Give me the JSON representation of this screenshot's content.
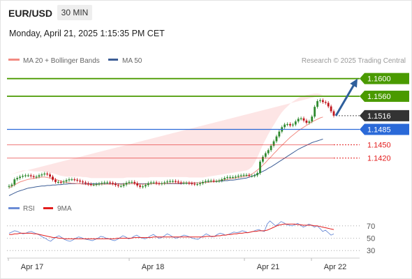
{
  "header": {
    "pair": "EUR/USD",
    "timeframe": "30 MIN",
    "datetime": "Monday, April 21, 2025 1:15:35 PM CET"
  },
  "legend": {
    "ma20": {
      "label": "MA 20 + Bollinger Bands",
      "color": "#f28b82"
    },
    "ma50": {
      "label": "MA 50",
      "color": "#3d5e96"
    },
    "source": "Research © 2025 Trading Central"
  },
  "rsi_legend": {
    "rsi": {
      "label": "RSI",
      "color": "#6b8cd6"
    },
    "ma9": {
      "label": "9MA",
      "color": "#e31d1d"
    }
  },
  "colors": {
    "green": "#4a9a00",
    "blue": "#2a69d8",
    "red": "#e31d1d",
    "candle_up": "#2f8a2f",
    "candle_down": "#c0141b",
    "band_fill": "#fde2e2",
    "arrow": "#2f5f9c",
    "current": "#333333"
  },
  "chart_data": {
    "type": "candlestick",
    "x_ticks": [
      "Apr 17",
      "Apr 18",
      "Apr 21",
      "Apr 22"
    ],
    "y_range": [
      1.132,
      1.162
    ],
    "levels": [
      {
        "label": "1.1600",
        "value": 1.16,
        "kind": "resistance",
        "color": "#4a9a00",
        "badge": true
      },
      {
        "label": "1.1560",
        "value": 1.156,
        "kind": "resistance",
        "color": "#4a9a00",
        "badge": true
      },
      {
        "label": "1.1516",
        "value": 1.1516,
        "kind": "current",
        "color": "#333333",
        "badge": true
      },
      {
        "label": "1.1485",
        "value": 1.1485,
        "kind": "pivot",
        "color": "#2a69d8",
        "badge": true
      },
      {
        "label": "1.1450",
        "value": 1.145,
        "kind": "support",
        "color": "#e31d1d",
        "badge": false
      },
      {
        "label": "1.1420",
        "value": 1.142,
        "kind": "support",
        "color": "#e31d1d",
        "badge": false
      }
    ],
    "closes": [
      1.1357,
      1.136,
      1.1372,
      1.1375,
      1.1378,
      1.138,
      1.1381,
      1.1381,
      1.1379,
      1.1377,
      1.1378,
      1.1381,
      1.1383,
      1.1385,
      1.1383,
      1.1378,
      1.1371,
      1.1366,
      1.1366,
      1.1365,
      1.1367,
      1.137,
      1.1372,
      1.1372,
      1.1371,
      1.1369,
      1.1367,
      1.1365,
      1.1363,
      1.1361,
      1.136,
      1.136,
      1.1361,
      1.1362,
      1.1364,
      1.1365,
      1.1365,
      1.1364,
      1.1362,
      1.1359,
      1.1357,
      1.1357,
      1.136,
      1.1364,
      1.1366,
      1.1366,
      1.1363,
      1.1358,
      1.1355,
      1.1356,
      1.1359,
      1.1363,
      1.1365,
      1.1365,
      1.1363,
      1.1362,
      1.1363,
      1.1365,
      1.1367,
      1.1368,
      1.1368,
      1.1367,
      1.1365,
      1.1364,
      1.1364,
      1.1364,
      1.1363,
      1.1362,
      1.1361,
      1.1361,
      1.1363,
      1.1366,
      1.1368,
      1.1369,
      1.1369,
      1.1368,
      1.1368,
      1.1369,
      1.1372,
      1.1375,
      1.1377,
      1.1377,
      1.1377,
      1.1378,
      1.138,
      1.1381,
      1.1382,
      1.1382,
      1.138,
      1.138,
      1.1381,
      1.1386,
      1.1412,
      1.1423,
      1.1431,
      1.1438,
      1.1448,
      1.1458,
      1.1469,
      1.148,
      1.149,
      1.1496,
      1.1497,
      1.1494,
      1.1496,
      1.1503,
      1.1509,
      1.151,
      1.1505,
      1.15,
      1.1503,
      1.1514,
      1.1536,
      1.1549,
      1.1551,
      1.1547,
      1.1545,
      1.1537,
      1.1526,
      1.1516
    ],
    "ma20": [
      1.1352,
      1.1356,
      1.1359,
      1.1363,
      1.1366,
      1.1368,
      1.137,
      1.1372,
      1.1373,
      1.1374,
      1.1375,
      1.1376,
      1.1377,
      1.1377,
      1.1376,
      1.1375,
      1.1374,
      1.1372,
      1.137,
      1.1368,
      1.1366,
      1.1365,
      1.1364,
      1.1363,
      1.1363,
      1.1362,
      1.1362,
      1.1361,
      1.1361,
      1.136,
      1.136,
      1.136,
      1.136,
      1.1361,
      1.1361,
      1.1361,
      1.1361,
      1.1361,
      1.1361,
      1.1361,
      1.1361,
      1.1361,
      1.1361,
      1.1362,
      1.1362,
      1.1362,
      1.1362,
      1.1361,
      1.1361,
      1.1361,
      1.1361,
      1.1361,
      1.1362,
      1.1362,
      1.1362,
      1.1362,
      1.1362,
      1.1362,
      1.1363,
      1.1363,
      1.1363,
      1.1363,
      1.1363,
      1.1364,
      1.1364,
      1.1364,
      1.1364,
      1.1364,
      1.1364,
      1.1364,
      1.1364,
      1.1364,
      1.1365,
      1.1365,
      1.1366,
      1.1367,
      1.1368,
      1.1369,
      1.137,
      1.1371,
      1.1372,
      1.1373,
      1.1374,
      1.1375,
      1.1376,
      1.1377,
      1.1378,
      1.1379,
      1.1381,
      1.1384,
      1.1388,
      1.1393,
      1.1398,
      1.1404,
      1.141,
      1.1417,
      1.1423,
      1.143,
      1.1436,
      1.1443,
      1.1449,
      1.1455,
      1.1461,
      1.1467,
      1.1472,
      1.1477,
      1.1482,
      1.1486,
      1.149,
      1.1494,
      1.1498,
      1.1502,
      1.1505,
      1.1508,
      1.1511,
      1.1513
    ],
    "ma50": [
      1.1335,
      1.1338,
      1.1341,
      1.1344,
      1.1346,
      1.1348,
      1.135,
      1.1352,
      1.1353,
      1.1354,
      1.1355,
      1.1356,
      1.1357,
      1.1357,
      1.1358,
      1.1358,
      1.1359,
      1.1359,
      1.136,
      1.136,
      1.1361,
      1.1361,
      1.1362,
      1.1362,
      1.1362,
      1.1362,
      1.1362,
      1.1362,
      1.1362,
      1.1362,
      1.1362,
      1.1362,
      1.1362,
      1.1362,
      1.1362,
      1.1362,
      1.1362,
      1.1362,
      1.1362,
      1.1362,
      1.1362,
      1.1362,
      1.1362,
      1.1362,
      1.1362,
      1.1362,
      1.1362,
      1.1362,
      1.1362,
      1.1362,
      1.1362,
      1.1362,
      1.1362,
      1.1362,
      1.1362,
      1.1362,
      1.1362,
      1.1362,
      1.1362,
      1.1362,
      1.1362,
      1.1362,
      1.1362,
      1.1362,
      1.1363,
      1.1363,
      1.1363,
      1.1363,
      1.1364,
      1.1364,
      1.1364,
      1.1365,
      1.1365,
      1.1366,
      1.1366,
      1.1367,
      1.1367,
      1.1368,
      1.1368,
      1.1369,
      1.1369,
      1.137,
      1.137,
      1.1371,
      1.1372,
      1.1373,
      1.1374,
      1.1375,
      1.1377,
      1.1379,
      1.1381,
      1.1384,
      1.1387,
      1.139,
      1.1393,
      1.1397,
      1.14,
      1.1404,
      1.1408,
      1.1412,
      1.1416,
      1.142,
      1.1424,
      1.1428,
      1.1432,
      1.1436,
      1.144,
      1.1443,
      1.1446,
      1.1449,
      1.1452,
      1.1455,
      1.1457,
      1.1459,
      1.1461,
      1.1463
    ],
    "bb_upper": [
      1.1382,
      1.1384,
      1.1386,
      1.1388,
      1.139,
      1.1392,
      1.1392,
      1.1392,
      1.1391,
      1.139,
      1.139,
      1.139,
      1.139,
      1.1389,
      1.1388,
      1.1387,
      1.1386,
      1.1384,
      1.1382,
      1.138,
      1.1379,
      1.1378,
      1.1378,
      1.1378,
      1.1378,
      1.1378,
      1.1378,
      1.1377,
      1.1377,
      1.1376,
      1.1375,
      1.1375,
      1.1375,
      1.1375,
      1.1375,
      1.1375,
      1.1375,
      1.1375,
      1.1375,
      1.1375,
      1.1375,
      1.1375,
      1.1375,
      1.1376,
      1.1376,
      1.1376,
      1.1376,
      1.1376,
      1.1376,
      1.1376,
      1.1376,
      1.1376,
      1.1377,
      1.1377,
      1.1377,
      1.1377,
      1.1377,
      1.1377,
      1.1377,
      1.1377,
      1.1377,
      1.1377,
      1.1377,
      1.1377,
      1.1377,
      1.1377,
      1.1376,
      1.1376,
      1.1376,
      1.1376,
      1.1376,
      1.1376,
      1.1377,
      1.1378,
      1.1379,
      1.138,
      1.1381,
      1.1382,
      1.1383,
      1.1384,
      1.1385,
      1.1386,
      1.1387,
      1.1388,
      1.1389,
      1.139,
      1.1391,
      1.1392,
      1.1395,
      1.14,
      1.141,
      1.1422,
      1.1436,
      1.145,
      1.1462,
      1.1474,
      1.1485,
      1.1495,
      1.1505,
      1.1515,
      1.1524,
      1.1531,
      1.1537,
      1.1543,
      1.1548,
      1.1552,
      1.1556,
      1.1559,
      1.1561,
      1.1563,
      1.1564,
      1.1565,
      1.1566,
      1.1566,
      1.1565,
      1.1563
    ],
    "bb_lower": [
      1.1322,
      1.1328,
      1.1333,
      1.1338,
      1.1342,
      1.1345,
      1.1348,
      1.1351,
      1.1353,
      1.1355,
      1.1356,
      1.1357,
      1.1358,
      1.1358,
      1.1358,
      1.1357,
      1.1356,
      1.1355,
      1.1353,
      1.1351,
      1.135,
      1.1349,
      1.1348,
      1.1348,
      1.1347,
      1.1347,
      1.1346,
      1.1346,
      1.1345,
      1.1345,
      1.1345,
      1.1345,
      1.1345,
      1.1346,
      1.1346,
      1.1346,
      1.1346,
      1.1346,
      1.1346,
      1.1346,
      1.1346,
      1.1346,
      1.1346,
      1.1347,
      1.1347,
      1.1347,
      1.1347,
      1.1346,
      1.1346,
      1.1346,
      1.1346,
      1.1346,
      1.1347,
      1.1347,
      1.1347,
      1.1347,
      1.1347,
      1.1347,
      1.1348,
      1.1348,
      1.1348,
      1.1348,
      1.1348,
      1.1349,
      1.1349,
      1.135,
      1.135,
      1.1351,
      1.1351,
      1.1352,
      1.1352,
      1.1352,
      1.1353,
      1.1353,
      1.1354,
      1.1355,
      1.1356,
      1.1357,
      1.1358,
      1.1358,
      1.1359,
      1.136,
      1.1361,
      1.1362,
      1.1363,
      1.1364,
      1.1365,
      1.1366,
      1.1367,
      1.1367,
      1.1366,
      1.1364,
      1.1361,
      1.1358,
      1.1358,
      1.136,
      1.1362,
      1.1366,
      1.1371,
      1.1377,
      1.1384,
      1.1392,
      1.14,
      1.1409,
      1.1418,
      1.1427,
      1.1435,
      1.1443,
      1.1451,
      1.1458,
      1.1465,
      1.1471,
      1.1476,
      1.1481,
      1.1486,
      1.1491
    ],
    "forecast_target": 1.16,
    "rsi": {
      "levels": [
        70,
        50,
        30
      ],
      "range": [
        20,
        80
      ],
      "rsi": [
        58,
        60,
        62,
        61,
        59,
        57,
        58,
        60,
        61,
        59,
        57,
        55,
        52,
        50,
        47,
        45,
        49,
        52,
        54,
        51,
        48,
        46,
        45,
        47,
        50,
        52,
        51,
        49,
        48,
        47,
        46,
        48,
        50,
        53,
        52,
        50,
        49,
        47,
        46,
        48,
        51,
        54,
        52,
        49,
        50,
        53,
        55,
        52,
        50,
        49,
        51,
        54,
        56,
        53,
        50,
        51,
        54,
        57,
        55,
        52,
        50,
        51,
        53,
        55,
        54,
        52,
        50,
        49,
        48,
        51,
        54,
        57,
        55,
        52,
        53,
        56,
        58,
        57,
        55,
        56,
        58,
        60,
        59,
        60,
        62,
        61,
        59,
        60,
        61,
        63,
        64,
        62,
        61,
        73,
        78,
        74,
        70,
        73,
        77,
        75,
        72,
        71,
        70,
        72,
        74,
        71,
        68,
        70,
        73,
        71,
        68,
        70,
        66,
        61,
        63,
        59,
        55,
        57
      ],
      "ma9": [
        56,
        56,
        57,
        57,
        58,
        58,
        58,
        58,
        58,
        57,
        57,
        56,
        55,
        54,
        53,
        52,
        51,
        51,
        50,
        50,
        49,
        49,
        49,
        49,
        49,
        49,
        49,
        49,
        49,
        49,
        49,
        49,
        49,
        49,
        49,
        49,
        49,
        49,
        49,
        50,
        50,
        50,
        50,
        50,
        50,
        51,
        51,
        51,
        51,
        51,
        51,
        51,
        52,
        52,
        52,
        52,
        52,
        52,
        52,
        52,
        52,
        52,
        52,
        52,
        52,
        52,
        52,
        52,
        52,
        52,
        52,
        53,
        53,
        53,
        53,
        54,
        54,
        55,
        55,
        56,
        56,
        57,
        57,
        58,
        58,
        59,
        59,
        60,
        61,
        61,
        62,
        62,
        62,
        63,
        65,
        67,
        69,
        71,
        72,
        73,
        73,
        73,
        73,
        73,
        72,
        72,
        71,
        71,
        71,
        71,
        70,
        70,
        69,
        68,
        67,
        66,
        65,
        64
      ]
    }
  }
}
